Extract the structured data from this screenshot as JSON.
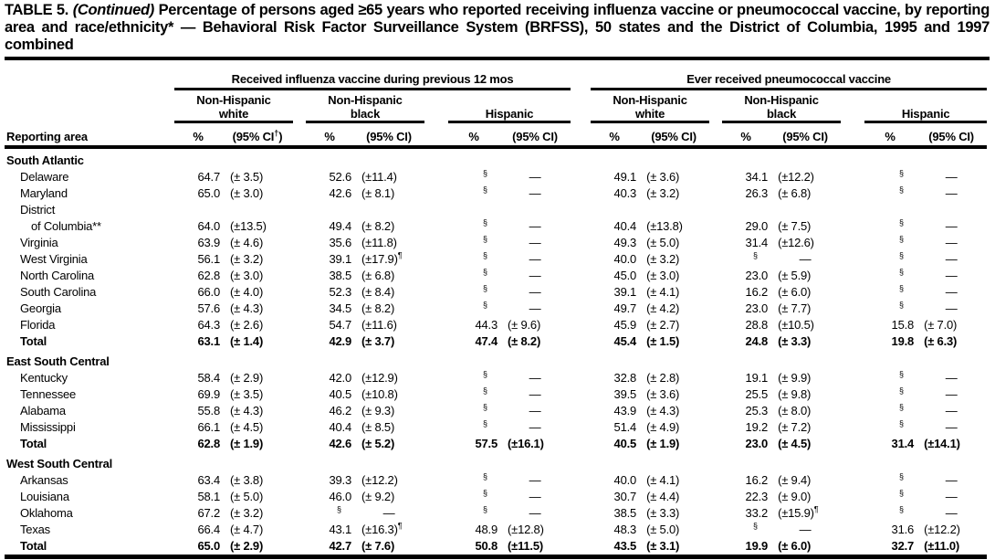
{
  "title": {
    "label": "TABLE 5.",
    "continued": "(Continued)",
    "rest": "Percentage of persons aged ≥65 years who reported receiving influenza vaccine or pneumococcal vaccine, by reporting area and race/ethnicity* — Behavioral Risk Factor Surveillance System (BRFSS), 50 states and the District of Columbia, 1995 and 1997 combined"
  },
  "table": {
    "group1": "Received influenza vaccine during previous 12 mos",
    "group2": "Ever received pneumococcal vaccine",
    "subgroups": [
      {
        "line1": "Non-Hispanic",
        "line2": "white"
      },
      {
        "line1": "Non-Hispanic",
        "line2": "black"
      },
      {
        "line1": "",
        "line2": "Hispanic"
      }
    ],
    "reporting_area": "Reporting area",
    "col_pct": "%",
    "col_ci": "(95% CI)",
    "ci_first_pre": "(95% CI",
    "ci_first_sup": "†",
    "ci_first_post": ")",
    "rows": [
      {
        "type": "section",
        "label": "South Atlantic",
        "indent": 0
      },
      {
        "type": "data",
        "label": "Delaware",
        "indent": 1,
        "cells": [
          "64.7",
          "(± 3.5)",
          "52.6",
          "(±11.4)",
          "§",
          "—",
          "49.1",
          "(± 3.6)",
          "34.1",
          "(±12.2)",
          "§",
          "—"
        ]
      },
      {
        "type": "data",
        "label": "Maryland",
        "indent": 1,
        "cells": [
          "65.0",
          "(± 3.0)",
          "42.6",
          "(± 8.1)",
          "§",
          "—",
          "40.3",
          "(± 3.2)",
          "26.3",
          "(± 6.8)",
          "§",
          "—"
        ]
      },
      {
        "type": "data",
        "label": "District",
        "indent": 1,
        "cells": [
          "",
          "",
          "",
          "",
          "",
          "",
          "",
          "",
          "",
          "",
          "",
          ""
        ]
      },
      {
        "type": "data",
        "label": "of Columbia**",
        "indent": 2,
        "cells": [
          "64.0",
          "(±13.5)",
          "49.4",
          "(± 8.2)",
          "§",
          "—",
          "40.4",
          "(±13.8)",
          "29.0",
          "(± 7.5)",
          "§",
          "—"
        ]
      },
      {
        "type": "data",
        "label": "Virginia",
        "indent": 1,
        "cells": [
          "63.9",
          "(± 4.6)",
          "35.6",
          "(±11.8)",
          "§",
          "—",
          "49.3",
          "(± 5.0)",
          "31.4",
          "(±12.6)",
          "§",
          "—"
        ]
      },
      {
        "type": "data",
        "label": "West Virginia",
        "indent": 1,
        "cells": [
          "56.1",
          "(± 3.2)",
          "39.1",
          "(±17.9)¶",
          "§",
          "—",
          "40.0",
          "(± 3.2)",
          "§",
          "—",
          "§",
          "—"
        ]
      },
      {
        "type": "data",
        "label": "North Carolina",
        "indent": 1,
        "cells": [
          "62.8",
          "(± 3.0)",
          "38.5",
          "(± 6.8)",
          "§",
          "—",
          "45.0",
          "(± 3.0)",
          "23.0",
          "(± 5.9)",
          "§",
          "—"
        ]
      },
      {
        "type": "data",
        "label": "South Carolina",
        "indent": 1,
        "cells": [
          "66.0",
          "(± 4.0)",
          "52.3",
          "(± 8.4)",
          "§",
          "—",
          "39.1",
          "(± 4.1)",
          "16.2",
          "(± 6.0)",
          "§",
          "—"
        ]
      },
      {
        "type": "data",
        "label": "Georgia",
        "indent": 1,
        "cells": [
          "57.6",
          "(± 4.3)",
          "34.5",
          "(± 8.2)",
          "§",
          "—",
          "49.7",
          "(± 4.2)",
          "23.0",
          "(± 7.7)",
          "§",
          "—"
        ]
      },
      {
        "type": "data",
        "label": "Florida",
        "indent": 1,
        "cells": [
          "64.3",
          "(± 2.6)",
          "54.7",
          "(±11.6)",
          "44.3",
          "(± 9.6)",
          "45.9",
          "(± 2.7)",
          "28.8",
          "(±10.5)",
          "15.8",
          "(± 7.0)"
        ]
      },
      {
        "type": "data",
        "label": "Total",
        "indent": 1,
        "bold": true,
        "cells": [
          "63.1",
          "(± 1.4)",
          "42.9",
          "(± 3.7)",
          "47.4",
          "(± 8.2)",
          "45.4",
          "(± 1.5)",
          "24.8",
          "(± 3.3)",
          "19.8",
          "(± 6.3)"
        ]
      },
      {
        "type": "section",
        "label": "East South Central",
        "indent": 0
      },
      {
        "type": "data",
        "label": "Kentucky",
        "indent": 1,
        "cells": [
          "58.4",
          "(± 2.9)",
          "42.0",
          "(±12.9)",
          "§",
          "—",
          "32.8",
          "(± 2.8)",
          "19.1",
          "(± 9.9)",
          "§",
          "—"
        ]
      },
      {
        "type": "data",
        "label": "Tennessee",
        "indent": 1,
        "cells": [
          "69.9",
          "(± 3.5)",
          "40.5",
          "(±10.8)",
          "§",
          "—",
          "39.5",
          "(± 3.6)",
          "25.5",
          "(± 9.8)",
          "§",
          "—"
        ]
      },
      {
        "type": "data",
        "label": "Alabama",
        "indent": 1,
        "cells": [
          "55.8",
          "(± 4.3)",
          "46.2",
          "(± 9.3)",
          "§",
          "—",
          "43.9",
          "(± 4.3)",
          "25.3",
          "(± 8.0)",
          "§",
          "—"
        ]
      },
      {
        "type": "data",
        "label": "Mississippi",
        "indent": 1,
        "cells": [
          "66.1",
          "(± 4.5)",
          "40.4",
          "(± 8.5)",
          "§",
          "—",
          "51.4",
          "(± 4.9)",
          "19.2",
          "(± 7.2)",
          "§",
          "—"
        ]
      },
      {
        "type": "data",
        "label": "Total",
        "indent": 1,
        "bold": true,
        "cells": [
          "62.8",
          "(± 1.9)",
          "42.6",
          "(± 5.2)",
          "57.5",
          "(±16.1)",
          "40.5",
          "(± 1.9)",
          "23.0",
          "(± 4.5)",
          "31.4",
          "(±14.1)"
        ]
      },
      {
        "type": "section",
        "label": "West South Central",
        "indent": 0
      },
      {
        "type": "data",
        "label": "Arkansas",
        "indent": 1,
        "cells": [
          "63.4",
          "(± 3.8)",
          "39.3",
          "(±12.2)",
          "§",
          "—",
          "40.0",
          "(± 4.1)",
          "16.2",
          "(± 9.4)",
          "§",
          "—"
        ]
      },
      {
        "type": "data",
        "label": "Louisiana",
        "indent": 1,
        "cells": [
          "58.1",
          "(± 5.0)",
          "46.0",
          "(± 9.2)",
          "§",
          "—",
          "30.7",
          "(± 4.4)",
          "22.3",
          "(± 9.0)",
          "§",
          "—"
        ]
      },
      {
        "type": "data",
        "label": "Oklahoma",
        "indent": 1,
        "cells": [
          "67.2",
          "(± 3.2)",
          "§",
          "—",
          "§",
          "—",
          "38.5",
          "(± 3.3)",
          "33.2",
          "(±15.9)¶",
          "§",
          "—"
        ]
      },
      {
        "type": "data",
        "label": "Texas",
        "indent": 1,
        "cells": [
          "66.4",
          "(± 4.7)",
          "43.1",
          "(±16.3)¶",
          "48.9",
          "(±12.8)",
          "48.3",
          "(± 5.0)",
          "§",
          "—",
          "31.6",
          "(±12.2)"
        ]
      },
      {
        "type": "data",
        "label": "Total",
        "indent": 1,
        "bold": true,
        "cells": [
          "65.0",
          "(± 2.9)",
          "42.7",
          "(± 7.6)",
          "50.8",
          "(±11.5)",
          "43.5",
          "(± 3.1)",
          "19.9",
          "(± 6.0)",
          "32.7",
          "(±11.0)"
        ]
      }
    ]
  }
}
